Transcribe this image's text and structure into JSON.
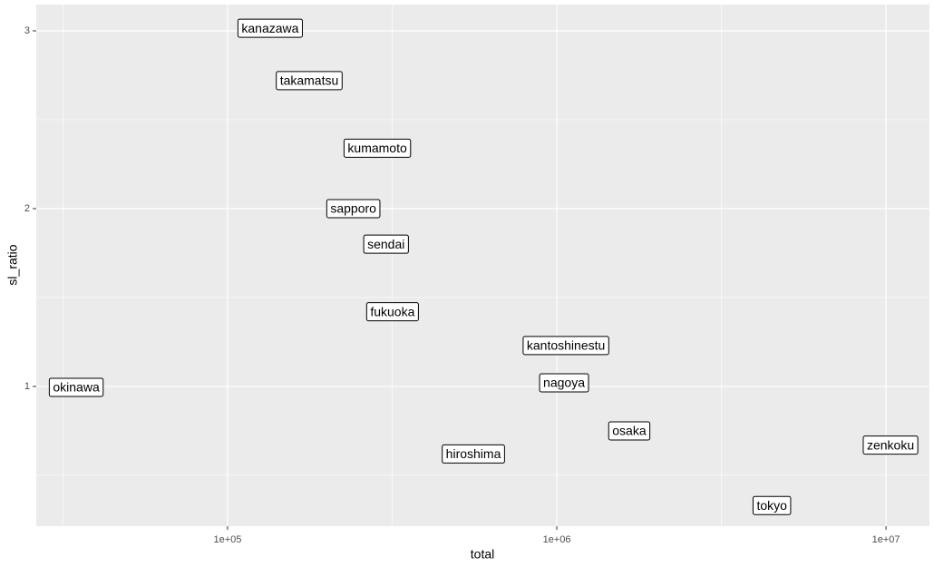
{
  "chart_data": {
    "type": "scatter",
    "x_label": "total",
    "y_label": "sl_ratio",
    "x_scale": "log",
    "grid": true,
    "panel_color": "#ebebeb",
    "label_fill": "#ffffff",
    "labels": [
      "okinawa",
      "kanazawa",
      "takamatsu",
      "kumamoto",
      "sapporo",
      "sendai",
      "fukuoka",
      "kantoshinestu",
      "nagoya",
      "osaka",
      "hiroshima",
      "zenkoku",
      "tokyo"
    ],
    "x": [
      34700,
      134700,
      177000,
      285000,
      241000,
      303000,
      317000,
      1066000,
      1052000,
      1660000,
      558000,
      10320000,
      4500000
    ],
    "values": [
      0.995,
      3.015,
      2.72,
      2.34,
      2.0,
      1.8,
      1.42,
      1.23,
      1.02,
      0.75,
      0.62,
      0.67,
      0.33
    ],
    "xlim": [
      26240,
      13550000
    ],
    "ylim": [
      0.214,
      3.148
    ],
    "xticks": [
      {
        "value": 100000,
        "label": "1e+05"
      },
      {
        "value": 1000000,
        "label": "1e+06"
      },
      {
        "value": 10000000,
        "label": "1e+07"
      }
    ],
    "yticks": [
      1,
      2,
      3
    ],
    "x_minor_ticks": [
      31623,
      316228,
      3162278
    ],
    "y_minor_ticks": [
      0.5,
      1.5,
      2.5
    ]
  }
}
